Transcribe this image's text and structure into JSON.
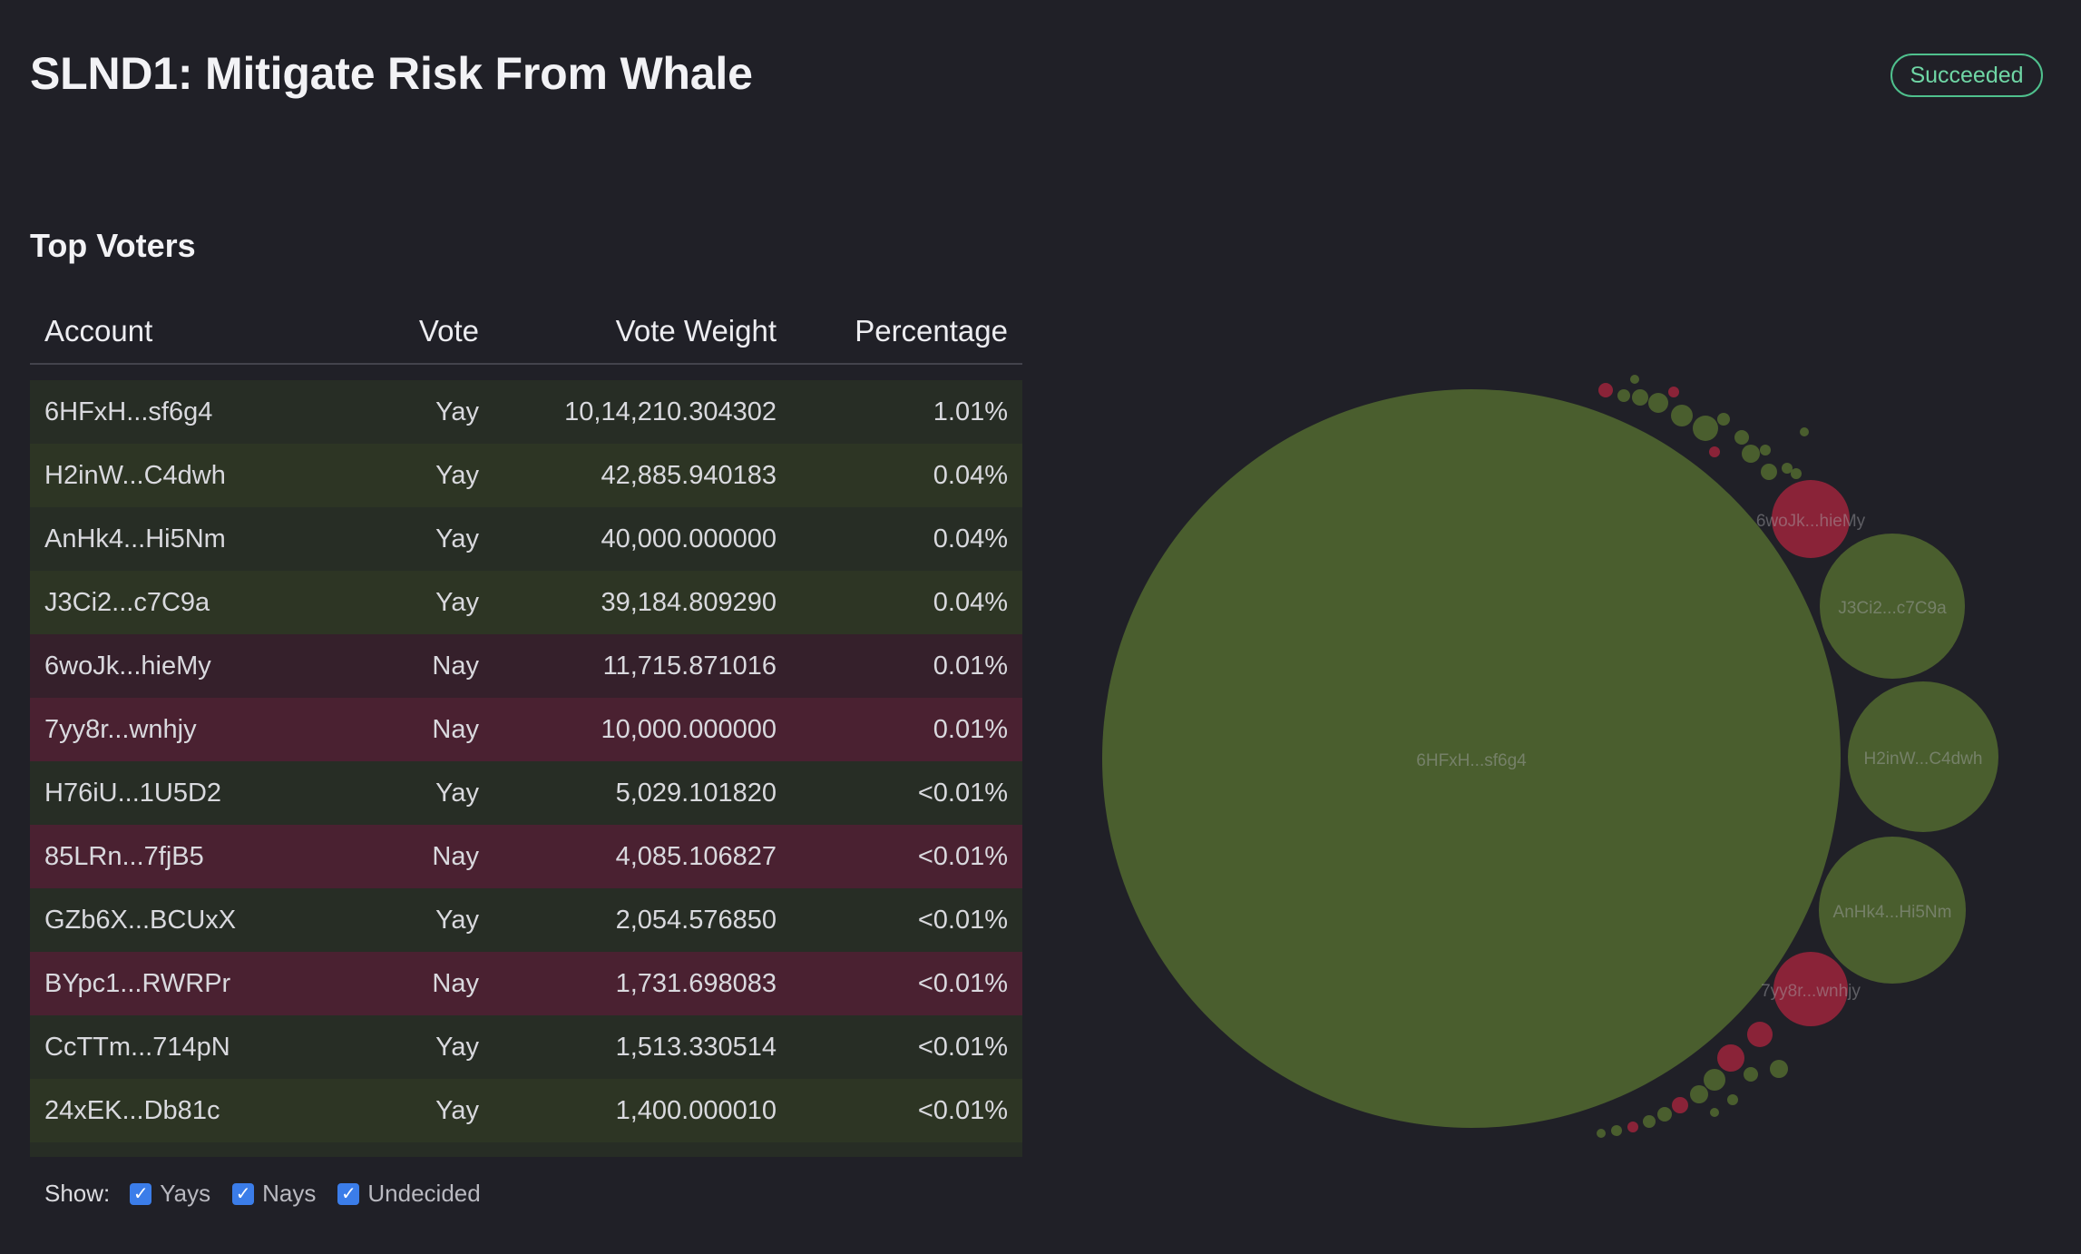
{
  "proposal": {
    "title": "SLND1: Mitigate Risk From Whale",
    "status": "Succeeded"
  },
  "top_voters": {
    "title": "Top Voters",
    "columns": [
      "Account",
      "Vote",
      "Vote Weight",
      "Percentage"
    ],
    "rows": [
      {
        "account": "6HFxH...sf6g4",
        "vote": "Yay",
        "weight": "10,14,210.304302",
        "pct": "1.01%"
      },
      {
        "account": "H2inW...C4dwh",
        "vote": "Yay",
        "weight": "42,885.940183",
        "pct": "0.04%"
      },
      {
        "account": "AnHk4...Hi5Nm",
        "vote": "Yay",
        "weight": "40,000.000000",
        "pct": "0.04%"
      },
      {
        "account": "J3Ci2...c7C9a",
        "vote": "Yay",
        "weight": "39,184.809290",
        "pct": "0.04%"
      },
      {
        "account": "6woJk...hieMy",
        "vote": "Nay",
        "weight": "11,715.871016",
        "pct": "0.01%"
      },
      {
        "account": "7yy8r...wnhjy",
        "vote": "Nay",
        "weight": "10,000.000000",
        "pct": "0.01%"
      },
      {
        "account": "H76iU...1U5D2",
        "vote": "Yay",
        "weight": "5,029.101820",
        "pct": "<0.01%"
      },
      {
        "account": "85LRn...7fjB5",
        "vote": "Nay",
        "weight": "4,085.106827",
        "pct": "<0.01%"
      },
      {
        "account": "GZb6X...BCUxX",
        "vote": "Yay",
        "weight": "2,054.576850",
        "pct": "<0.01%"
      },
      {
        "account": "BYpc1...RWRPr",
        "vote": "Nay",
        "weight": "1,731.698083",
        "pct": "<0.01%"
      },
      {
        "account": "CcTTm...714pN",
        "vote": "Yay",
        "weight": "1,513.330514",
        "pct": "<0.01%"
      },
      {
        "account": "24xEK...Db81c",
        "vote": "Yay",
        "weight": "1,400.000010",
        "pct": "<0.01%"
      }
    ]
  },
  "filters": {
    "label": "Show:",
    "options": [
      {
        "label": "Yays",
        "checked": true
      },
      {
        "label": "Nays",
        "checked": true
      },
      {
        "label": "Undecided",
        "checked": true
      }
    ]
  },
  "bubble_chart": {
    "yay_color": "#4a5e2e",
    "nay_color": "#8a2338",
    "bubbles": [
      {
        "label": "6HFxH...sf6g4",
        "vote": "Yay"
      },
      {
        "label": "H2inW...C4dwh",
        "vote": "Yay"
      },
      {
        "label": "AnHk4...Hi5Nm",
        "vote": "Yay"
      },
      {
        "label": "J3Ci2...c7C9a",
        "vote": "Yay"
      },
      {
        "label": "6woJk...hieMy",
        "vote": "Nay"
      },
      {
        "label": "7yy8r...wnhjy",
        "vote": "Nay"
      }
    ]
  }
}
